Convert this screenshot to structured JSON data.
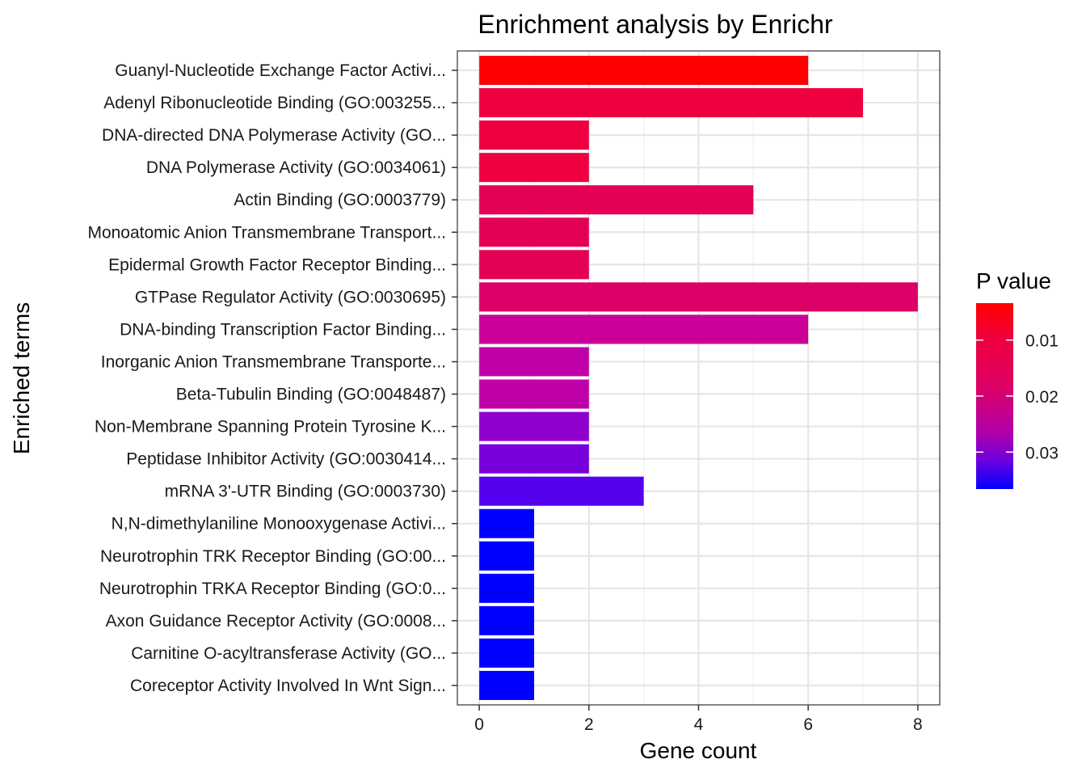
{
  "chart_data": {
    "type": "bar",
    "orientation": "horizontal",
    "title": "Enrichment analysis by Enrichr",
    "xlabel": "Gene count",
    "ylabel": "Enriched terms",
    "xlim": [
      -0.4,
      8.4
    ],
    "xticks": [
      0,
      2,
      4,
      6,
      8
    ],
    "grid": true,
    "legend": {
      "title": "P value",
      "placement": "right",
      "range": [
        0.0034,
        0.0366
      ],
      "ticks": [
        0.01,
        0.02,
        0.03
      ],
      "tick_labels": [
        "0.01",
        "0.02",
        "0.03"
      ],
      "low_color": "#ff0000",
      "high_color": "#0000ff"
    },
    "categories": [
      "Guanyl-Nucleotide Exchange Factor Activi...",
      "Adenyl Ribonucleotide Binding (GO:003255...",
      "DNA-directed DNA Polymerase Activity (GO...",
      "DNA Polymerase Activity (GO:0034061)",
      "Actin Binding (GO:0003779)",
      "Monoatomic Anion Transmembrane Transport...",
      "Epidermal Growth Factor Receptor Binding...",
      "GTPase Regulator Activity (GO:0030695)",
      "DNA-binding Transcription Factor Binding...",
      "Inorganic Anion Transmembrane Transporte...",
      "Beta-Tubulin Binding (GO:0048487)",
      "Non-Membrane Spanning Protein Tyrosine K...",
      "Peptidase Inhibitor Activity (GO:0030414...",
      "mRNA 3'-UTR Binding (GO:0003730)",
      "N,N-dimethylaniline Monooxygenase Activi...",
      "Neurotrophin TRK Receptor Binding (GO:00...",
      "Neurotrophin TRKA Receptor Binding (GO:0...",
      "Axon Guidance Receptor Activity (GO:0008...",
      "Carnitine O-acyltransferase Activity (GO...",
      "Coreceptor Activity Involved In Wnt Sign..."
    ],
    "values": [
      6,
      7,
      2,
      2,
      5,
      2,
      2,
      8,
      6,
      2,
      2,
      2,
      2,
      3,
      1,
      1,
      1,
      1,
      1,
      1
    ],
    "colors": [
      "#ff0000",
      "#ee0040",
      "#ee0040",
      "#ee0040",
      "#e40055",
      "#e40055",
      "#e40055",
      "#dd0066",
      "#cc0099",
      "#c000a8",
      "#c000a8",
      "#9000cc",
      "#7700dd",
      "#5500ee",
      "#0000ff",
      "#0000ff",
      "#0000ff",
      "#0000ff",
      "#0000ff",
      "#0000ff"
    ]
  }
}
